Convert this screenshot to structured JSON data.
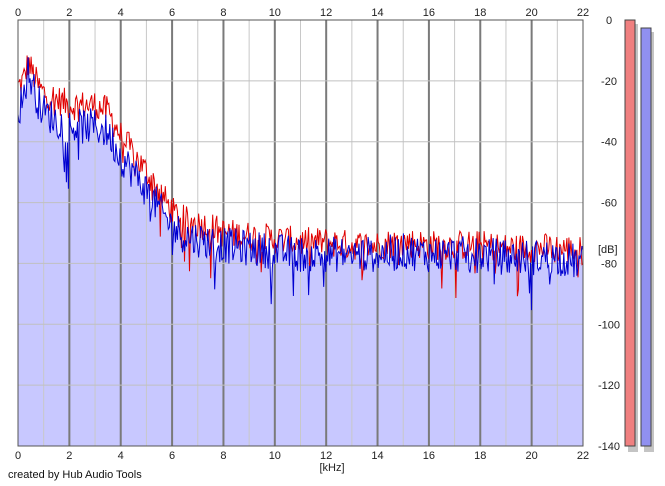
{
  "chart_data": {
    "type": "area",
    "xlabel": "[kHz]",
    "ylabel": "[dB]",
    "xlim": [
      0,
      22
    ],
    "ylim": [
      -140,
      0
    ],
    "x_ticks": [
      0,
      2,
      4,
      6,
      8,
      10,
      12,
      14,
      16,
      18,
      20,
      22
    ],
    "x_tick_labels": [
      "0",
      "2",
      "4",
      "6",
      "8",
      "10",
      "12",
      "14",
      "16",
      "18",
      "20",
      "22"
    ],
    "y_ticks": [
      0,
      -20,
      -40,
      -60,
      -80,
      -100,
      -120,
      -140
    ],
    "y_tick_labels": [
      "0",
      "-20",
      "-40",
      "-60",
      "-80",
      "-100",
      "-120",
      "-140"
    ],
    "grid": true,
    "major_grid_every_kHz": 2,
    "minor_grid_every_kHz": 1,
    "series": [
      {
        "channel": "left",
        "color": "#e00000",
        "x": [
          0,
          0.2,
          0.4,
          0.6,
          0.8,
          1.0,
          1.5,
          2.0,
          2.5,
          3.0,
          3.5,
          4.0,
          4.5,
          5.0,
          5.5,
          6.0,
          6.5,
          7.0,
          7.5,
          8.0,
          9.0,
          10.0,
          11.0,
          12.0,
          13.0,
          14.0,
          15.0,
          16.0,
          17.0,
          18.0,
          19.0,
          20.0,
          21.0,
          22.0
        ],
        "values": [
          -22,
          -20,
          -14,
          -18,
          -22,
          -24,
          -26,
          -28,
          -28,
          -28,
          -30,
          -38,
          -44,
          -50,
          -56,
          -63,
          -66,
          -67,
          -68,
          -70,
          -71,
          -72,
          -73,
          -73,
          -74,
          -74,
          -73,
          -74,
          -74,
          -74,
          -75,
          -75,
          -75,
          -76
        ]
      },
      {
        "channel": "right",
        "color": "#0000d0",
        "x": [
          0,
          0.2,
          0.4,
          0.6,
          0.8,
          1.0,
          1.5,
          2.0,
          2.5,
          3.0,
          3.5,
          4.0,
          4.5,
          5.0,
          5.5,
          6.0,
          6.5,
          7.0,
          7.5,
          8.0,
          9.0,
          10.0,
          11.0,
          12.0,
          13.0,
          14.0,
          15.0,
          16.0,
          17.0,
          18.0,
          19.0,
          20.0,
          21.0,
          22.0
        ],
        "values": [
          -30,
          -25,
          -17,
          -22,
          -27,
          -30,
          -33,
          -35,
          -35,
          -35,
          -37,
          -45,
          -50,
          -56,
          -62,
          -68,
          -71,
          -72,
          -73,
          -74,
          -75,
          -76,
          -77,
          -77,
          -77,
          -77,
          -76,
          -77,
          -77,
          -77,
          -78,
          -78,
          -78,
          -80
        ]
      }
    ],
    "level_meters": [
      {
        "channel": "left",
        "color": "#f08080",
        "level_db": -140
      },
      {
        "channel": "right",
        "color": "#9090f0",
        "level_db": -140
      }
    ],
    "fill_color": "#c8c8ff"
  },
  "footer": {
    "credit": "created by Hub Audio Tools"
  }
}
